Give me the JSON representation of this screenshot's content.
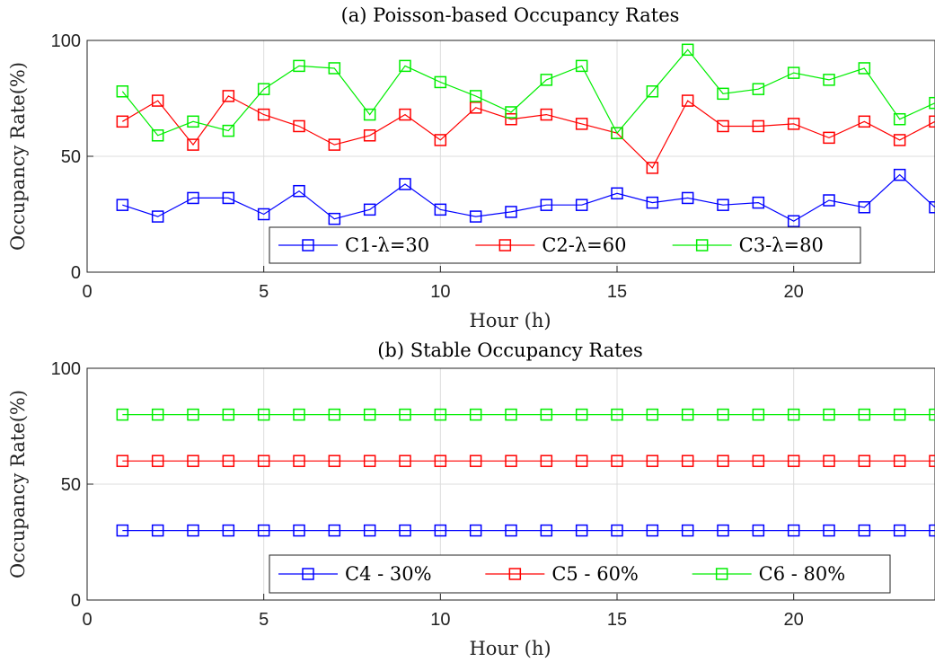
{
  "chart_data": [
    {
      "type": "line",
      "title": "(a) Poisson-based Occupancy Rates",
      "xlabel": "Hour (h)",
      "ylabel": "Occupancy Rate(%)",
      "xlim": [
        0,
        24
      ],
      "ylim": [
        0,
        100
      ],
      "xticks": [
        0,
        5,
        10,
        15,
        20
      ],
      "yticks": [
        0,
        50,
        100
      ],
      "grid": true,
      "legend_position": "bottom-center",
      "x": [
        1,
        2,
        3,
        4,
        5,
        6,
        7,
        8,
        9,
        10,
        11,
        12,
        13,
        14,
        15,
        16,
        17,
        18,
        19,
        20,
        21,
        22,
        23,
        24
      ],
      "series": [
        {
          "name": "C1-λ=30",
          "color": "#0000ff",
          "marker": "square",
          "values": [
            29,
            24,
            32,
            32,
            25,
            35,
            23,
            27,
            38,
            27,
            24,
            26,
            29,
            29,
            34,
            30,
            32,
            29,
            30,
            22,
            31,
            28,
            42,
            28
          ]
        },
        {
          "name": "C2-λ=60",
          "color": "#ff0000",
          "marker": "square",
          "values": [
            65,
            74,
            55,
            76,
            68,
            63,
            55,
            59,
            68,
            57,
            71,
            66,
            68,
            64,
            60,
            45,
            74,
            63,
            63,
            64,
            58,
            65,
            57,
            65
          ]
        },
        {
          "name": "C3-λ=80",
          "color": "#00ee00",
          "marker": "square",
          "values": [
            78,
            59,
            65,
            61,
            79,
            89,
            88,
            68,
            89,
            82,
            76,
            69,
            83,
            89,
            60,
            78,
            96,
            77,
            79,
            86,
            83,
            88,
            66,
            73
          ]
        }
      ]
    },
    {
      "type": "line",
      "title": "(b) Stable Occupancy Rates",
      "xlabel": "Hour (h)",
      "ylabel": "Occupancy Rate(%)",
      "xlim": [
        0,
        24
      ],
      "ylim": [
        0,
        100
      ],
      "xticks": [
        0,
        5,
        10,
        15,
        20
      ],
      "yticks": [
        0,
        50,
        100
      ],
      "grid": true,
      "legend_position": "bottom-center",
      "x": [
        1,
        2,
        3,
        4,
        5,
        6,
        7,
        8,
        9,
        10,
        11,
        12,
        13,
        14,
        15,
        16,
        17,
        18,
        19,
        20,
        21,
        22,
        23,
        24
      ],
      "series": [
        {
          "name": "C4 - 30%",
          "color": "#0000ff",
          "marker": "square",
          "values": [
            30,
            30,
            30,
            30,
            30,
            30,
            30,
            30,
            30,
            30,
            30,
            30,
            30,
            30,
            30,
            30,
            30,
            30,
            30,
            30,
            30,
            30,
            30,
            30
          ]
        },
        {
          "name": "C5 - 60%",
          "color": "#ff0000",
          "marker": "square",
          "values": [
            60,
            60,
            60,
            60,
            60,
            60,
            60,
            60,
            60,
            60,
            60,
            60,
            60,
            60,
            60,
            60,
            60,
            60,
            60,
            60,
            60,
            60,
            60,
            60
          ]
        },
        {
          "name": "C6 - 80%",
          "color": "#00ee00",
          "marker": "square",
          "values": [
            80,
            80,
            80,
            80,
            80,
            80,
            80,
            80,
            80,
            80,
            80,
            80,
            80,
            80,
            80,
            80,
            80,
            80,
            80,
            80,
            80,
            80,
            80,
            80
          ]
        }
      ]
    }
  ]
}
